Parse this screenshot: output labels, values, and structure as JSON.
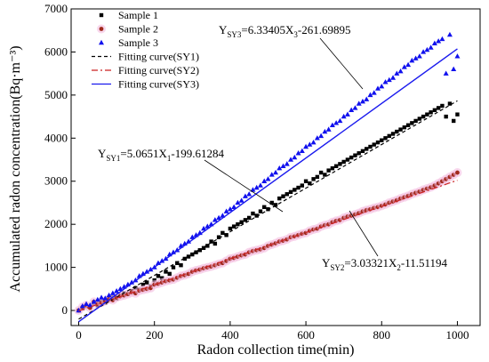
{
  "chart_data": {
    "type": "scatter",
    "xlabel": "Radon collection time(min)",
    "ylabel": "Accumulated radon concentration(Bq·m⁻³)",
    "xlim": [
      -20,
      1060
    ],
    "ylim": [
      -350,
      7000
    ],
    "xticks": [
      0,
      200,
      400,
      600,
      800,
      1000
    ],
    "yticks": [
      0,
      1000,
      2000,
      3000,
      4000,
      5000,
      6000,
      7000
    ],
    "x_tick_labels": [
      "0",
      "200",
      "400",
      "600",
      "800",
      "1000"
    ],
    "y_tick_labels": [
      "0",
      "1000",
      "2000",
      "3000",
      "4000",
      "5000",
      "6000",
      "7000"
    ],
    "legend_position": "top-left",
    "colors": {
      "sy1": "#000000",
      "sy2": "#a0291c",
      "sy2_halo": "#f3b6dc",
      "sy3": "#1010ee",
      "fit1": "#000000",
      "fit2": "#cc2222",
      "fit3": "#1a1aee"
    },
    "series": [
      {
        "name": "Sample 1",
        "marker": "square",
        "color": "#000000",
        "x": [
          0,
          10,
          20,
          30,
          40,
          50,
          60,
          70,
          80,
          90,
          100,
          110,
          120,
          130,
          140,
          150,
          160,
          170,
          180,
          190,
          200,
          210,
          220,
          230,
          240,
          250,
          260,
          270,
          280,
          290,
          300,
          310,
          320,
          330,
          340,
          350,
          360,
          370,
          380,
          390,
          400,
          410,
          420,
          430,
          440,
          450,
          460,
          470,
          480,
          490,
          500,
          510,
          520,
          530,
          540,
          550,
          560,
          570,
          580,
          590,
          600,
          610,
          620,
          630,
          640,
          650,
          660,
          670,
          680,
          690,
          700,
          710,
          720,
          730,
          740,
          750,
          760,
          770,
          780,
          790,
          800,
          810,
          820,
          830,
          840,
          850,
          860,
          870,
          880,
          890,
          900,
          910,
          920,
          930,
          940,
          950,
          960,
          970,
          980,
          990,
          1000
        ],
        "y": [
          0,
          50,
          100,
          80,
          150,
          120,
          200,
          180,
          250,
          300,
          280,
          350,
          400,
          380,
          450,
          520,
          480,
          600,
          650,
          560,
          700,
          800,
          750,
          900,
          850,
          1000,
          1100,
          1050,
          1200,
          1250,
          1300,
          1350,
          1400,
          1450,
          1500,
          1600,
          1550,
          1700,
          1800,
          1750,
          1900,
          1950,
          2000,
          2050,
          2100,
          2150,
          2250,
          2200,
          2300,
          2400,
          2350,
          2500,
          2450,
          2600,
          2650,
          2700,
          2750,
          2800,
          2850,
          2900,
          3000,
          2950,
          3050,
          3100,
          3200,
          3150,
          3250,
          3300,
          3350,
          3400,
          3450,
          3500,
          3550,
          3600,
          3650,
          3700,
          3750,
          3800,
          3850,
          3900,
          3950,
          4000,
          4050,
          4100,
          4150,
          4200,
          4250,
          4300,
          4350,
          4400,
          4450,
          4500,
          4550,
          4600,
          4650,
          4700,
          4750,
          4500,
          4800,
          4400,
          4550
        ]
      },
      {
        "name": "Sample 2",
        "marker": "circle",
        "color": "#a0291c",
        "x": [
          0,
          10,
          20,
          30,
          40,
          50,
          60,
          70,
          80,
          90,
          100,
          110,
          120,
          130,
          140,
          150,
          160,
          170,
          180,
          190,
          200,
          210,
          220,
          230,
          240,
          250,
          260,
          270,
          280,
          290,
          300,
          310,
          320,
          330,
          340,
          350,
          360,
          370,
          380,
          390,
          400,
          410,
          420,
          430,
          440,
          450,
          460,
          470,
          480,
          490,
          500,
          510,
          520,
          530,
          540,
          550,
          560,
          570,
          580,
          590,
          600,
          610,
          620,
          630,
          640,
          650,
          660,
          670,
          680,
          690,
          700,
          710,
          720,
          730,
          740,
          750,
          760,
          770,
          780,
          790,
          800,
          810,
          820,
          830,
          840,
          850,
          860,
          870,
          880,
          890,
          900,
          910,
          920,
          930,
          940,
          950,
          960,
          970,
          980,
          990,
          1000
        ],
        "y": [
          0,
          80,
          120,
          60,
          200,
          150,
          180,
          220,
          260,
          240,
          300,
          330,
          350,
          380,
          420,
          400,
          460,
          480,
          500,
          520,
          600,
          620,
          650,
          680,
          700,
          720,
          760,
          800,
          820,
          850,
          900,
          930,
          950,
          980,
          1000,
          1020,
          1050,
          1080,
          1100,
          1150,
          1200,
          1220,
          1250,
          1280,
          1300,
          1350,
          1380,
          1400,
          1420,
          1450,
          1500,
          1530,
          1560,
          1600,
          1620,
          1650,
          1700,
          1720,
          1750,
          1780,
          1800,
          1850,
          1880,
          1900,
          1950,
          1980,
          2000,
          2050,
          2080,
          2100,
          2150,
          2180,
          2200,
          2230,
          2260,
          2300,
          2330,
          2350,
          2380,
          2400,
          2430,
          2460,
          2500,
          2530,
          2560,
          2600,
          2630,
          2660,
          2700,
          2730,
          2760,
          2800,
          2830,
          2860,
          2900,
          2950,
          3000,
          3050,
          3100,
          3150,
          3200
        ]
      },
      {
        "name": "Sample 3",
        "marker": "triangle",
        "color": "#1010ee",
        "x": [
          0,
          10,
          20,
          30,
          40,
          50,
          60,
          70,
          80,
          90,
          100,
          110,
          120,
          130,
          140,
          150,
          160,
          170,
          180,
          190,
          200,
          210,
          220,
          230,
          240,
          250,
          260,
          270,
          280,
          290,
          300,
          310,
          320,
          330,
          340,
          350,
          360,
          370,
          380,
          390,
          400,
          410,
          420,
          430,
          440,
          450,
          460,
          470,
          480,
          490,
          500,
          510,
          520,
          530,
          540,
          550,
          560,
          570,
          580,
          590,
          600,
          610,
          620,
          630,
          640,
          650,
          660,
          670,
          680,
          690,
          700,
          710,
          720,
          730,
          740,
          750,
          760,
          770,
          780,
          790,
          800,
          810,
          820,
          830,
          840,
          850,
          860,
          870,
          880,
          890,
          900,
          910,
          920,
          930,
          940,
          950,
          960,
          970,
          980,
          990,
          1000
        ],
        "y": [
          0,
          100,
          150,
          120,
          200,
          250,
          300,
          280,
          350,
          400,
          450,
          500,
          550,
          600,
          650,
          700,
          800,
          850,
          900,
          950,
          1000,
          1100,
          1150,
          1200,
          1300,
          1350,
          1400,
          1500,
          1550,
          1600,
          1700,
          1750,
          1800,
          1900,
          1950,
          2000,
          2100,
          2150,
          2200,
          2300,
          2350,
          2400,
          2500,
          2550,
          2650,
          2700,
          2800,
          2850,
          2900,
          3000,
          3050,
          3150,
          3200,
          3300,
          3350,
          3400,
          3500,
          3550,
          3650,
          3700,
          3800,
          3850,
          3900,
          4000,
          4050,
          4150,
          4200,
          4300,
          4350,
          4400,
          4500,
          4550,
          4650,
          4700,
          4800,
          4850,
          4900,
          5000,
          5050,
          5150,
          5200,
          5300,
          5350,
          5400,
          5500,
          5550,
          5650,
          5700,
          5800,
          5850,
          5900,
          6000,
          6050,
          6100,
          6200,
          6250,
          6300,
          5500,
          6400,
          5600,
          5900
        ]
      }
    ],
    "fits": [
      {
        "name": "Fitting curve(SY1)",
        "style": "dash",
        "color": "#000000",
        "slope": 5.0651,
        "intercept": -199.61284,
        "x": [
          0,
          1000
        ]
      },
      {
        "name": "Fitting curve(SY2)",
        "style": "dashdot",
        "color": "#cc2222",
        "slope": 3.03321,
        "intercept": -11.51194,
        "x": [
          0,
          1000
        ]
      },
      {
        "name": "Fitting curve(SY3)",
        "style": "solid",
        "color": "#1a1aee",
        "slope": 6.33405,
        "intercept": -261.69895,
        "x": [
          0,
          1000
        ]
      }
    ],
    "annotations": [
      {
        "id": "sy3",
        "label": "Y",
        "sub": "SY3",
        "expr": "=6.33405X",
        "exprsub": "3",
        "tail": "-261.69895"
      },
      {
        "id": "sy1",
        "label": "Y",
        "sub": "SY1",
        "expr": "=5.0651X",
        "exprsub": "1",
        "tail": "-199.61284"
      },
      {
        "id": "sy2",
        "label": "Y",
        "sub": "SY2",
        "expr": "=3.03321X",
        "exprsub": "2",
        "tail": "-11.51194"
      }
    ]
  }
}
